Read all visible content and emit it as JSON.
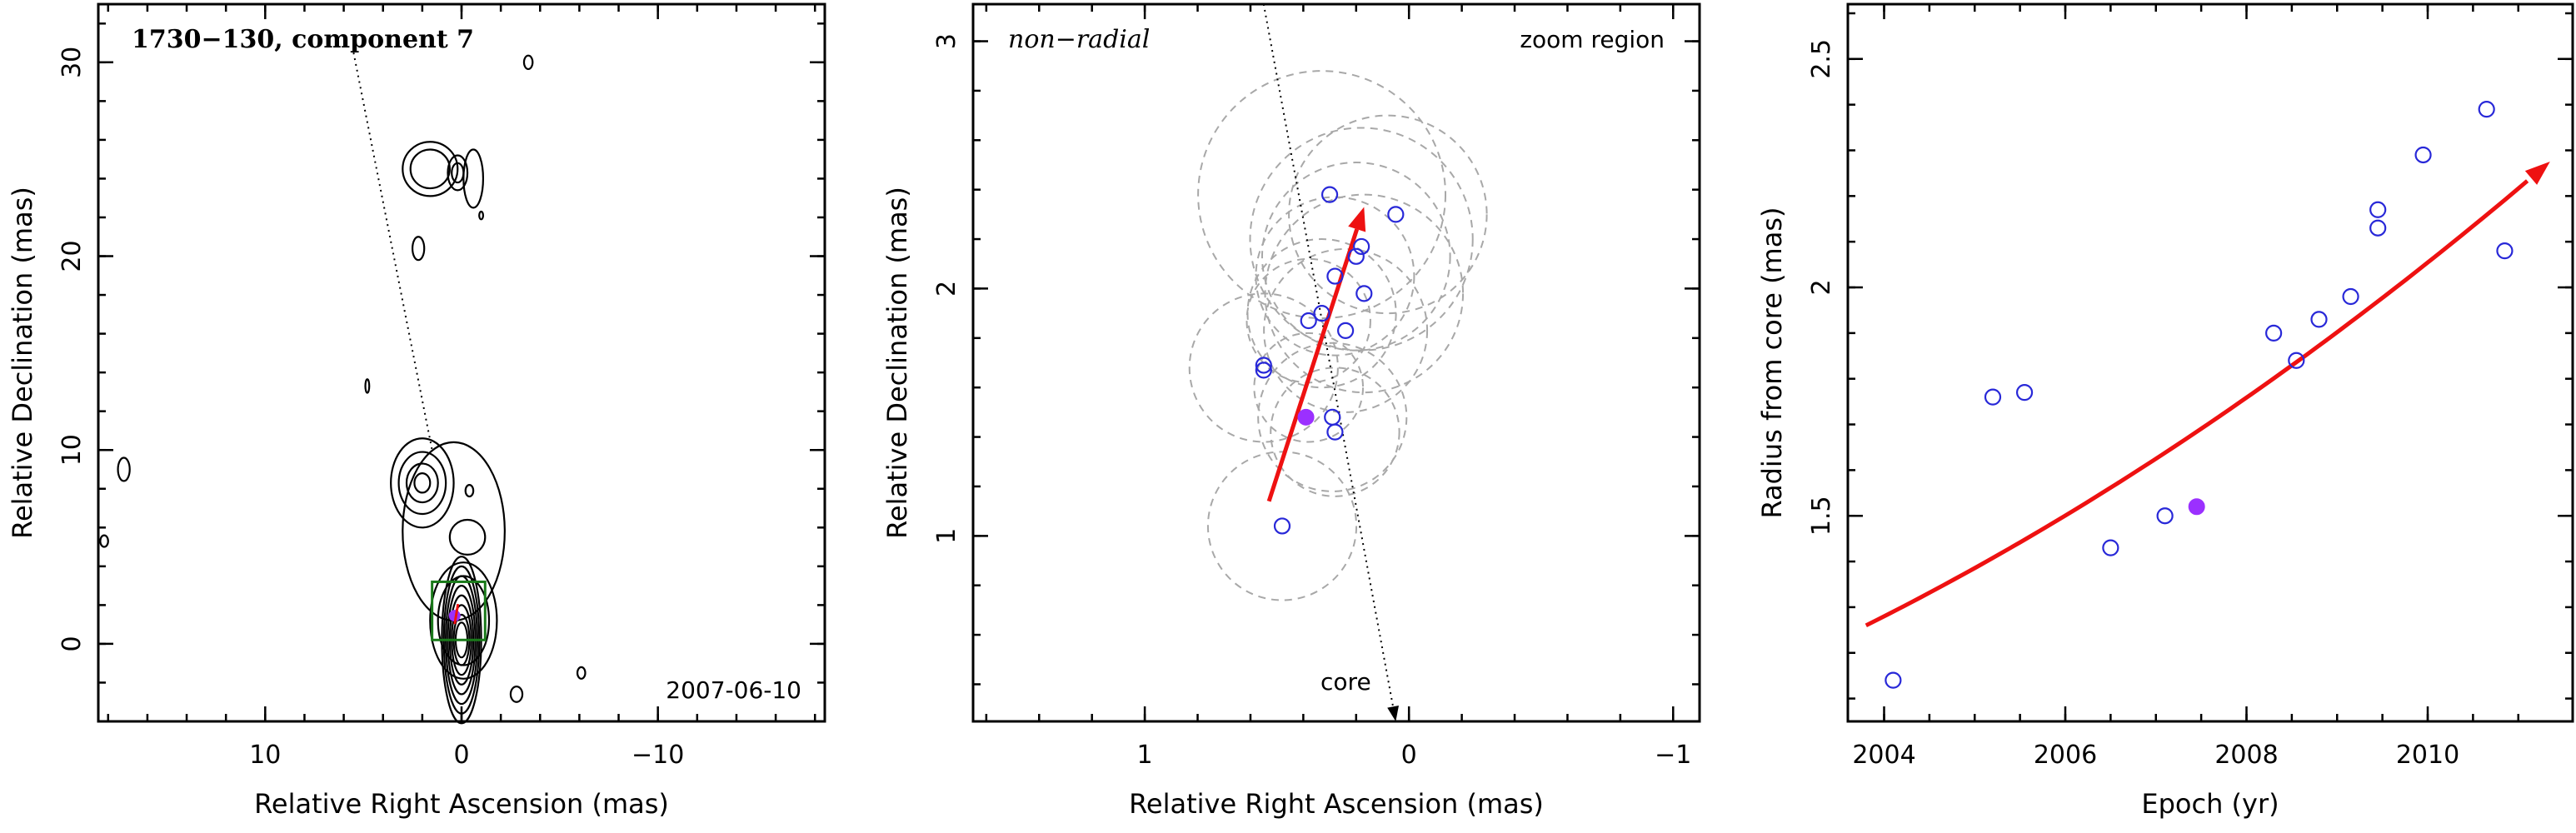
{
  "chart_data": [
    {
      "type": "contour",
      "panel": "left",
      "title": "1730−130, component 7",
      "annotation": "2007-06-10",
      "xlabel": "Relative Right Ascension (mas)",
      "ylabel": "Relative Declination (mas)",
      "xlim": [
        18.5,
        -18.5
      ],
      "ylim": [
        -4,
        33
      ],
      "xticks": [
        10,
        0,
        -10
      ],
      "xtick_labels": [
        "10",
        "0",
        "−10"
      ],
      "yticks": [
        0,
        10,
        20,
        30
      ],
      "ytick_labels": [
        "0",
        "10",
        "20",
        "30"
      ],
      "jet_axis": {
        "from": [
          5.5,
          30.5
        ],
        "to": [
          1.5,
          10
        ]
      },
      "zoom_box": {
        "x": [
          1.5,
          -1.2
        ],
        "y": [
          0.2,
          3.2
        ]
      },
      "component_marker": {
        "x": 0.35,
        "y": 1.45
      },
      "contour_groups": [
        {
          "center": [
            0.0,
            0.2
          ],
          "radii": [
            [
              1.0,
              4.3
            ],
            [
              0.9,
              3.8
            ],
            [
              0.8,
              3.3
            ],
            [
              0.7,
              2.8
            ],
            [
              0.6,
              2.3
            ],
            [
              0.5,
              1.8
            ],
            [
              0.4,
              1.3
            ],
            [
              0.3,
              0.9
            ]
          ]
        },
        {
          "center": [
            -0.1,
            1.2
          ],
          "radii": [
            [
              1.7,
              3.0
            ],
            [
              1.3,
              2.3
            ]
          ]
        },
        {
          "center": [
            2.0,
            8.3
          ],
          "radii": [
            [
              1.6,
              2.3
            ],
            [
              1.2,
              1.6
            ],
            [
              0.8,
              1.0
            ],
            [
              0.4,
              0.5
            ]
          ]
        },
        {
          "center": [
            0.4,
            5.8
          ],
          "radii": [
            [
              2.6,
              4.6
            ]
          ]
        },
        {
          "center": [
            -0.3,
            5.5
          ],
          "radii": [
            [
              0.9,
              0.9
            ]
          ]
        },
        {
          "center": [
            1.6,
            24.5
          ],
          "radii": [
            [
              1.4,
              1.4
            ],
            [
              1.0,
              1.0
            ]
          ]
        },
        {
          "center": [
            0.2,
            24.3
          ],
          "radii": [
            [
              0.5,
              0.9
            ],
            [
              0.3,
              0.5
            ]
          ]
        },
        {
          "center": [
            -0.6,
            24.0
          ],
          "radii": [
            [
              0.5,
              1.5
            ]
          ]
        },
        {
          "center": [
            2.2,
            20.4
          ],
          "radii": [
            [
              0.3,
              0.6
            ]
          ]
        },
        {
          "center": [
            -3.4,
            30.0
          ],
          "radii": [
            [
              0.22,
              0.35
            ]
          ]
        },
        {
          "center": [
            17.2,
            9.0
          ],
          "radii": [
            [
              0.3,
              0.6
            ]
          ]
        },
        {
          "center": [
            18.2,
            5.3
          ],
          "radii": [
            [
              0.2,
              0.3
            ]
          ]
        },
        {
          "center": [
            -0.4,
            7.9
          ],
          "radii": [
            [
              0.2,
              0.3
            ]
          ]
        },
        {
          "center": [
            4.8,
            13.3
          ],
          "radii": [
            [
              0.1,
              0.35
            ]
          ]
        },
        {
          "center": [
            -2.8,
            -2.6
          ],
          "radii": [
            [
              0.3,
              0.4
            ]
          ]
        },
        {
          "center": [
            -6.1,
            -1.5
          ],
          "radii": [
            [
              0.2,
              0.3
            ]
          ]
        },
        {
          "center": [
            -1.0,
            22.1
          ],
          "radii": [
            [
              0.1,
              0.2
            ]
          ]
        }
      ]
    },
    {
      "type": "scatter",
      "panel": "middle",
      "title": "non−radial",
      "annotation": "zoom region",
      "core_label": "core",
      "xlabel": "Relative Right Ascension (mas)",
      "ylabel": "Relative Declination (mas)",
      "xlim": [
        1.65,
        -1.1
      ],
      "ylim": [
        0.25,
        3.15
      ],
      "xticks": [
        1,
        0,
        -1
      ],
      "xtick_labels": [
        "1",
        "0",
        "−1"
      ],
      "yticks": [
        1,
        2,
        3
      ],
      "ytick_labels": [
        "1",
        "2",
        "3"
      ],
      "jet_axis": {
        "from": [
          0.55,
          3.15
        ],
        "to": [
          0.05,
          0.25
        ]
      },
      "motion_vector": {
        "from": [
          0.53,
          1.14
        ],
        "to": [
          0.17,
          2.33
        ]
      },
      "points_open": [
        {
          "x": 0.3,
          "y": 2.38
        },
        {
          "x": 0.05,
          "y": 2.3
        },
        {
          "x": 0.18,
          "y": 2.17
        },
        {
          "x": 0.2,
          "y": 2.13
        },
        {
          "x": 0.28,
          "y": 2.05
        },
        {
          "x": 0.17,
          "y": 1.98
        },
        {
          "x": 0.33,
          "y": 1.9
        },
        {
          "x": 0.38,
          "y": 1.87
        },
        {
          "x": 0.24,
          "y": 1.83
        },
        {
          "x": 0.55,
          "y": 1.69
        },
        {
          "x": 0.55,
          "y": 1.67
        },
        {
          "x": 0.29,
          "y": 1.48
        },
        {
          "x": 0.28,
          "y": 1.42
        },
        {
          "x": 0.48,
          "y": 1.04
        }
      ],
      "points_filled": [
        {
          "x": 0.39,
          "y": 1.48
        }
      ],
      "error_circles": [
        {
          "x": 0.33,
          "y": 2.38,
          "r": 0.5
        },
        {
          "x": 0.08,
          "y": 2.3,
          "r": 0.4
        },
        {
          "x": 0.18,
          "y": 2.2,
          "r": 0.45
        },
        {
          "x": 0.2,
          "y": 2.13,
          "r": 0.38
        },
        {
          "x": 0.28,
          "y": 2.05,
          "r": 0.32
        },
        {
          "x": 0.17,
          "y": 1.98,
          "r": 0.4
        },
        {
          "x": 0.33,
          "y": 1.9,
          "r": 0.3
        },
        {
          "x": 0.38,
          "y": 1.87,
          "r": 0.25
        },
        {
          "x": 0.24,
          "y": 1.83,
          "r": 0.33
        },
        {
          "x": 0.55,
          "y": 1.68,
          "r": 0.3
        },
        {
          "x": 0.29,
          "y": 1.48,
          "r": 0.3
        },
        {
          "x": 0.28,
          "y": 1.42,
          "r": 0.26
        },
        {
          "x": 0.48,
          "y": 1.04,
          "r": 0.3
        },
        {
          "x": 0.38,
          "y": 1.6,
          "r": 0.22
        }
      ]
    },
    {
      "type": "scatter",
      "panel": "right",
      "xlabel": "Epoch (yr)",
      "ylabel": "Radius from core (mas)",
      "xlim": [
        2003.6,
        2011.6
      ],
      "ylim": [
        1.05,
        2.62
      ],
      "xticks": [
        2004,
        2006,
        2008,
        2010
      ],
      "xtick_labels": [
        "2004",
        "2006",
        "2008",
        "2010"
      ],
      "yticks": [
        1.5,
        2.0,
        2.5
      ],
      "ytick_labels": [
        "1.5",
        "2",
        "2.5"
      ],
      "points_open": [
        {
          "x": 2004.1,
          "y": 1.14
        },
        {
          "x": 2005.2,
          "y": 1.76
        },
        {
          "x": 2005.55,
          "y": 1.77
        },
        {
          "x": 2006.5,
          "y": 1.43
        },
        {
          "x": 2007.1,
          "y": 1.5
        },
        {
          "x": 2008.3,
          "y": 1.9
        },
        {
          "x": 2008.55,
          "y": 1.84
        },
        {
          "x": 2008.8,
          "y": 1.93
        },
        {
          "x": 2009.15,
          "y": 1.98
        },
        {
          "x": 2009.45,
          "y": 2.17
        },
        {
          "x": 2009.45,
          "y": 2.13
        },
        {
          "x": 2009.95,
          "y": 2.29
        },
        {
          "x": 2010.65,
          "y": 2.39
        },
        {
          "x": 2010.85,
          "y": 2.08
        }
      ],
      "points_filled": [
        {
          "x": 2007.45,
          "y": 1.52
        }
      ],
      "fit_curve": {
        "x0": 2003.8,
        "y0": 1.26,
        "coef1": 0.099,
        "coef2": 0.0047,
        "x_end": 2011.35
      },
      "fit_color": "#ee1111"
    }
  ]
}
